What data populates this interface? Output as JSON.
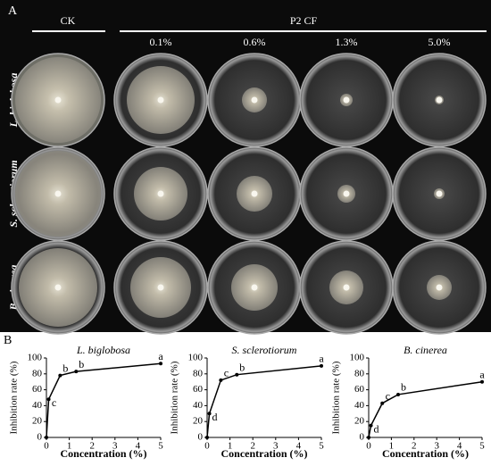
{
  "panel_a": {
    "label": "A",
    "control": "CK",
    "treatment": "P2 CF",
    "concentrations": [
      "0.1%",
      "0.6%",
      "1.3%",
      "5.0%"
    ],
    "species": [
      "L. biglobosa",
      "S. sclerotiorum",
      "B. cinerea"
    ]
  },
  "panel_b_label": "B",
  "chart_data": [
    {
      "type": "line",
      "title": "L. biglobosa",
      "x_label": "Concentration (%)",
      "y_label": "Inhibition rate (%)",
      "x": [
        0,
        0.1,
        0.6,
        1.3,
        5.0
      ],
      "values": [
        0,
        48,
        78,
        83,
        93
      ],
      "point_labels": [
        null,
        "c",
        "b",
        "b",
        "a"
      ],
      "xlim": [
        0,
        5
      ],
      "xticks": [
        0,
        1,
        2,
        3,
        4,
        5
      ],
      "ylim": [
        0,
        100
      ],
      "yticks": [
        0,
        20,
        40,
        60,
        80,
        100
      ],
      "color": "#000000"
    },
    {
      "type": "line",
      "title": "S. sclerotiorum",
      "x_label": "Concentration (%)",
      "y_label": "Inhibition rate (%)",
      "x": [
        0,
        0.1,
        0.6,
        1.3,
        5.0
      ],
      "values": [
        0,
        30,
        72,
        79,
        90
      ],
      "point_labels": [
        null,
        "d",
        "c",
        "b",
        "a"
      ],
      "xlim": [
        0,
        5
      ],
      "xticks": [
        0,
        1,
        2,
        3,
        4,
        5
      ],
      "ylim": [
        0,
        100
      ],
      "yticks": [
        0,
        20,
        40,
        60,
        80,
        100
      ],
      "color": "#000000"
    },
    {
      "type": "line",
      "title": "B. cinerea",
      "x_label": "Concentration (%)",
      "y_label": "Inhibition rate (%)",
      "x": [
        0,
        0.1,
        0.6,
        1.3,
        5.0
      ],
      "values": [
        0,
        15,
        43,
        54,
        70
      ],
      "point_labels": [
        null,
        "d",
        "c",
        "b",
        "a"
      ],
      "xlim": [
        0,
        5
      ],
      "xticks": [
        0,
        1,
        2,
        3,
        4,
        5
      ],
      "ylim": [
        0,
        100
      ],
      "yticks": [
        0,
        20,
        40,
        60,
        80,
        100
      ],
      "color": "#000000"
    }
  ]
}
